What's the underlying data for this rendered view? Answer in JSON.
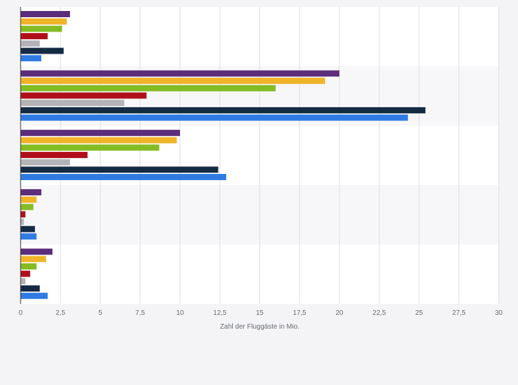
{
  "chart_data": {
    "type": "bar",
    "orientation": "horizontal",
    "xlabel": "Zahl der Fluggäste in Mio.",
    "ylabel": "",
    "xlim": [
      0,
      30
    ],
    "x_ticks": [
      "0",
      "2,5",
      "5",
      "7,5",
      "10",
      "12,5",
      "15",
      "17,5",
      "20",
      "22,5",
      "25",
      "27,5",
      "30"
    ],
    "x_tick_values": [
      0,
      2.5,
      5,
      7.5,
      10,
      12.5,
      15,
      17.5,
      20,
      22.5,
      25,
      27.5,
      30
    ],
    "grid": "vertical",
    "legend": "none",
    "groups": 5,
    "series": [
      {
        "color": "#5b2d7a",
        "values": [
          3.1,
          20.0,
          10.0,
          1.3,
          2.0
        ]
      },
      {
        "color": "#f0b429",
        "values": [
          2.9,
          19.1,
          9.8,
          1.0,
          1.6
        ]
      },
      {
        "color": "#84bc24",
        "values": [
          2.6,
          16.0,
          8.7,
          0.8,
          1.0
        ]
      },
      {
        "color": "#b0101a",
        "values": [
          1.7,
          7.9,
          4.2,
          0.3,
          0.6
        ]
      },
      {
        "color": "#b4b4b8",
        "values": [
          1.2,
          6.5,
          3.1,
          0.2,
          0.3
        ]
      },
      {
        "color": "#152b44",
        "values": [
          2.7,
          25.4,
          12.4,
          0.9,
          1.2
        ]
      },
      {
        "color": "#2f7be3",
        "values": [
          1.3,
          24.3,
          12.9,
          1.0,
          1.7
        ]
      }
    ]
  }
}
